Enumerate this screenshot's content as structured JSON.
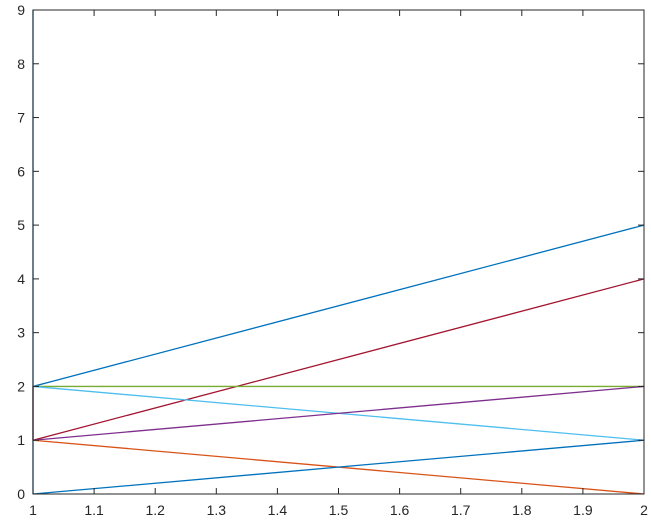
{
  "chart_data": {
    "type": "line",
    "title": "",
    "xlabel": "",
    "ylabel": "",
    "xlim": [
      1,
      2
    ],
    "ylim": [
      0,
      9
    ],
    "xticks": [
      1,
      1.1,
      1.2,
      1.3,
      1.4,
      1.5,
      1.6,
      1.7,
      1.8,
      1.9,
      2
    ],
    "xtick_labels": [
      "1",
      "1.1",
      "1.2",
      "1.3",
      "1.4",
      "1.5",
      "1.6",
      "1.7",
      "1.8",
      "1.9",
      "2"
    ],
    "yticks": [
      0,
      1,
      2,
      3,
      4,
      5,
      6,
      7,
      8,
      9
    ],
    "ytick_labels": [
      "0",
      "1",
      "2",
      "3",
      "4",
      "5",
      "6",
      "7",
      "8",
      "9"
    ],
    "grid": false,
    "legend": "none",
    "series": [
      {
        "x": [
          1,
          1
        ],
        "y": [
          0,
          9
        ],
        "color": "#0072BD"
      },
      {
        "x": [
          1,
          2
        ],
        "y": [
          2,
          5
        ],
        "color": "#0072BD"
      },
      {
        "x": [
          1,
          2
        ],
        "y": [
          1,
          4
        ],
        "color": "#A2142F"
      },
      {
        "x": [
          1,
          1
        ],
        "y": [
          1,
          2
        ],
        "color": "#A2142F"
      },
      {
        "x": [
          1,
          2
        ],
        "y": [
          2,
          2
        ],
        "color": "#77AC30"
      },
      {
        "x": [
          1,
          2
        ],
        "y": [
          2,
          1
        ],
        "color": "#4DBEEE"
      },
      {
        "x": [
          1,
          2
        ],
        "y": [
          1,
          2
        ],
        "color": "#7E2F8E"
      },
      {
        "x": [
          1,
          2
        ],
        "y": [
          1,
          0
        ],
        "color": "#D95319"
      },
      {
        "x": [
          1,
          2
        ],
        "y": [
          0,
          1
        ],
        "color": "#0072BD"
      }
    ]
  }
}
